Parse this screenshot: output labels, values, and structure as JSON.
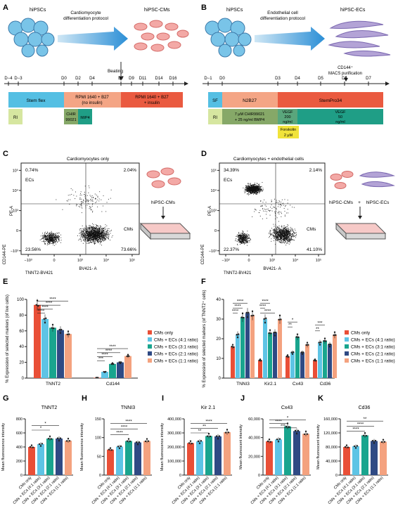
{
  "panels": {
    "A": "A",
    "B": "B",
    "C": "C",
    "D": "D",
    "E": "E",
    "F": "F",
    "G": "G",
    "H": "H",
    "I": "I",
    "J": "J",
    "K": "K"
  },
  "A": {
    "start_label": "hiPSCs",
    "protocol": [
      "Cardiomyocyte",
      "differentiation protocol"
    ],
    "end_label": "hiPSC-CMs",
    "beating": "Beating",
    "days": [
      "D−4",
      "D−3",
      "D0",
      "D2",
      "D4",
      "D7",
      "D9",
      "D11",
      "D14",
      "D16"
    ],
    "seg_stemflex": "Stem flex",
    "seg_rpmi1": [
      "RPMI 1640 + B27",
      "(no insulin)"
    ],
    "seg_rpmi2": [
      "RPMI 1640 + B27",
      "+ insulin"
    ],
    "seg_ri": "RI",
    "seg_chir": [
      "CHIR",
      "99021"
    ],
    "seg_iwp": "IWP4"
  },
  "B": {
    "start_label": "hiPSCs",
    "protocol": [
      "Endothelial cell",
      "differentiation protocol"
    ],
    "end_label": "hiPSC-ECs",
    "purif": [
      "CD144⁺",
      "MACS purification"
    ],
    "days": [
      "D−1",
      "D0",
      "D3",
      "D4",
      "D5",
      "D6",
      "D7"
    ],
    "seg_sf": "SF",
    "seg_n2b27": "N2B27",
    "seg_stempro": "StemPro34",
    "seg_ri": "RI",
    "seg_chir": [
      "7 μM CHIR99021",
      "+ 25 ng/ml BMP4"
    ],
    "seg_vegf1": [
      "VEGF",
      "200",
      "ng/ml"
    ],
    "seg_vegf2": [
      "VEGF",
      "50",
      "ng/ml"
    ],
    "seg_forsk": [
      "Forskolin",
      "2 μM"
    ]
  },
  "C": {
    "title": "Cardiomyocytes only",
    "q_ul": "0.74%",
    "q_ur": "2.04%",
    "q_ll": "23.56%",
    "q_lr": "73.66%",
    "ecs": "ECs",
    "cms": "CMs",
    "ylabel": "PE-A",
    "xlabel": "BV421- A",
    "ylabel2": "CD144-PE",
    "xlabel2": "TNNT2-BV421",
    "xticks": [
      "−10³",
      "0",
      "10³",
      "10⁴",
      "10⁵"
    ],
    "yticks": [
      "10⁵",
      "10⁴",
      "10³",
      "0",
      "−10³"
    ],
    "side_label": "hiPSC-CMs"
  },
  "D": {
    "title": "Cardiomyocytes + endothelial cells",
    "q_ul": "34.39%",
    "q_ur": "2.14%",
    "q_ll": "22.37%",
    "q_lr": "41.10%",
    "ecs": "ECs",
    "cms": "CMs",
    "ylabel": "PE-A",
    "xlabel": "BV421- A",
    "ylabel2": "CD144-PE",
    "xlabel2": "TNNT2-BV421",
    "xticks": [
      "−10³",
      "0",
      "10³",
      "10⁴",
      "10⁵"
    ],
    "yticks": [
      "10⁵",
      "10⁴",
      "10³",
      "0",
      "−10³"
    ],
    "side_cm": "hiPSC-CMs",
    "plus": "+",
    "side_ec": "hiPSC-ECs"
  },
  "legend": [
    "CMs only",
    "CMs + ECs (4:1 ratio)",
    "CMs + ECs (3:1 ratio)",
    "CMs + ECs (2:1 ratio)",
    "CMs + ECs (1:1 ratio)"
  ],
  "group_labels": [
    "CMs only",
    "CMs + ECs (4:1 ratio)",
    "CMs + ECs (3:1 ratio)",
    "CMs + ECs (2:1 ratio)",
    "CMs + ECs (1:1 ratio)"
  ],
  "colors": [
    "#e94f37",
    "#5ec4e5",
    "#19a58e",
    "#2f4a84",
    "#f4a27f"
  ],
  "sig": {
    "s1": "*",
    "s2": "**",
    "s3": "***",
    "s4": "****"
  },
  "chart_data": [
    {
      "panel": "E",
      "type": "bar",
      "ylabel": "% Expression of selected markers (of live cells)",
      "categories": [
        "TNNT2",
        "Cd144"
      ],
      "ylim": [
        0,
        100
      ],
      "yticks": [
        0,
        20,
        40,
        60,
        80,
        100
      ],
      "series": [
        {
          "name": "CMs only",
          "values": [
            93,
            0.5
          ]
        },
        {
          "name": "CMs + ECs (4:1 ratio)",
          "values": [
            75,
            8
          ]
        },
        {
          "name": "CMs + ECs (3:1 ratio)",
          "values": [
            64,
            18
          ]
        },
        {
          "name": "CMs + ECs (2:1 ratio)",
          "values": [
            61,
            20
          ]
        },
        {
          "name": "CMs + ECs (1:1 ratio)",
          "values": [
            56,
            28
          ]
        }
      ]
    },
    {
      "panel": "F",
      "type": "bar",
      "ylabel": "% Expression of selected markers (of TNNT2⁺ cells)",
      "categories": [
        "TNNI3",
        "Kir2.1",
        "Cx43",
        "Cd36"
      ],
      "ylim": [
        0,
        40
      ],
      "yticks": [
        0,
        10,
        20,
        30,
        40
      ],
      "series": [
        {
          "name": "CMs only",
          "values": [
            16,
            9,
            11,
            9
          ]
        },
        {
          "name": "CMs + ECs (4:1 ratio)",
          "values": [
            22,
            30,
            13,
            18
          ]
        },
        {
          "name": "CMs + ECs (3:1 ratio)",
          "values": [
            31,
            23,
            21,
            19
          ]
        },
        {
          "name": "CMs + ECs (2:1 ratio)",
          "values": [
            33,
            23,
            13,
            17
          ]
        },
        {
          "name": "CMs + ECs (1:1 ratio)",
          "values": [
            32,
            30,
            17,
            22
          ]
        }
      ]
    },
    {
      "panel": "G",
      "type": "bar",
      "title": "TNNT2",
      "ylabel": "Mean fluorescence intensity",
      "ylim": [
        0,
        800
      ],
      "yticks": [
        0,
        200,
        400,
        600,
        800
      ],
      "values": [
        400,
        440,
        520,
        520,
        490
      ]
    },
    {
      "panel": "H",
      "type": "bar",
      "title": "TNNI3",
      "ylabel": "Mean fluorescence intensity",
      "ylim": [
        0,
        150
      ],
      "yticks": [
        0,
        50,
        100,
        150
      ],
      "values": [
        68,
        76,
        91,
        87,
        91
      ]
    },
    {
      "panel": "I",
      "type": "bar",
      "title": "Kir 2.1",
      "ylabel": "Mean fluorescence intensity",
      "ylim": [
        0,
        400000
      ],
      "yticks": [
        0,
        100000,
        200000,
        300000,
        400000
      ],
      "ytick_labels": [
        "0",
        "100,000",
        "200,000",
        "300,000",
        "400,000"
      ],
      "values": [
        228000,
        240000,
        278000,
        275000,
        305000
      ]
    },
    {
      "panel": "J",
      "type": "bar",
      "title": "Cx43",
      "ylabel": "Mean fluorescent intensity",
      "ylim": [
        0,
        60000
      ],
      "yticks": [
        0,
        20000,
        40000,
        60000
      ],
      "ytick_labels": [
        "0",
        "20,000",
        "40,000",
        "60,000"
      ],
      "values": [
        36000,
        38000,
        52000,
        47000,
        44000
      ]
    },
    {
      "panel": "K",
      "type": "bar",
      "title": "Cd36",
      "ylabel": "Mean fluorescent intensity",
      "ylim": [
        0,
        160000
      ],
      "yticks": [
        0,
        40000,
        80000,
        120000,
        160000
      ],
      "ytick_labels": [
        "0",
        "40,000",
        "80,000",
        "120,000",
        "160,000"
      ],
      "values": [
        80000,
        82000,
        113000,
        97000,
        95000
      ]
    }
  ]
}
